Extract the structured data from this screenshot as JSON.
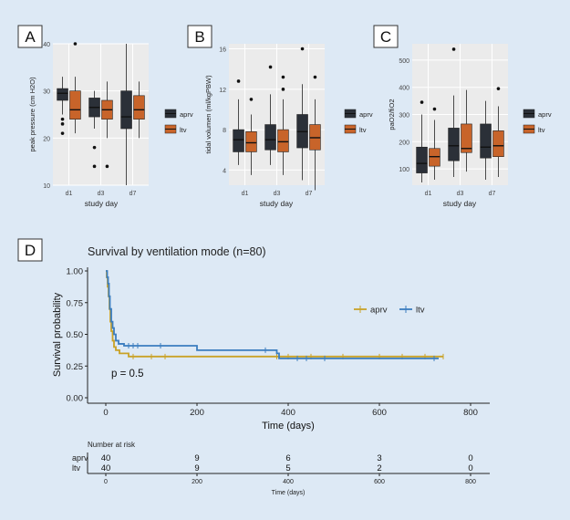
{
  "colors": {
    "background": "#dde9f5",
    "box_aprv": "#2b3038",
    "box_ltv": "#c8642a",
    "km_aprv": "#c9a227",
    "km_ltv": "#3b7dbf",
    "axis": "#333333"
  },
  "chart_data": [
    {
      "type": "box",
      "panel_label": "A",
      "ylabel": "peak pressure (cm H2O)",
      "xlabel": "study day",
      "categories": [
        "d1",
        "d3",
        "d7"
      ],
      "ylim": [
        10,
        40
      ],
      "yticks": [
        10,
        20,
        30,
        40
      ],
      "legend": [
        "aprv",
        "ltv"
      ],
      "series": [
        {
          "name": "aprv",
          "boxes": [
            {
              "low": 25,
              "q1": 28,
              "median": 29.5,
              "q3": 30.5,
              "high": 33,
              "outliers": [
                24,
                23,
                21
              ]
            },
            {
              "low": 22,
              "q1": 24.5,
              "median": 26.5,
              "q3": 28.5,
              "high": 30,
              "outliers": [
                18,
                14
              ]
            },
            {
              "low": 10,
              "q1": 22,
              "median": 24.5,
              "q3": 30,
              "high": 40,
              "outliers": []
            }
          ]
        },
        {
          "name": "ltv",
          "boxes": [
            {
              "low": 21,
              "q1": 24,
              "median": 26,
              "q3": 30,
              "high": 33,
              "outliers": [
                40
              ]
            },
            {
              "low": 20,
              "q1": 24,
              "median": 26,
              "q3": 28,
              "high": 32,
              "outliers": [
                14
              ]
            },
            {
              "low": 20,
              "q1": 24,
              "median": 26,
              "q3": 29,
              "high": 32,
              "outliers": []
            }
          ]
        }
      ]
    },
    {
      "type": "box",
      "panel_label": "B",
      "ylabel": "tidal volumen (ml/kgPBW)",
      "xlabel": "study day",
      "categories": [
        "d1",
        "d3",
        "d7"
      ],
      "ylim": [
        2.5,
        16.5
      ],
      "yticks": [
        4,
        8,
        12,
        16
      ],
      "legend": [
        "aprv",
        "ltv"
      ],
      "series": [
        {
          "name": "aprv",
          "boxes": [
            {
              "low": 4.5,
              "q1": 5.8,
              "median": 7,
              "q3": 8,
              "high": 11,
              "outliers": [
                12.8
              ]
            },
            {
              "low": 4.5,
              "q1": 6,
              "median": 7,
              "q3": 8.5,
              "high": 11.5,
              "outliers": [
                14.2
              ]
            },
            {
              "low": 3,
              "q1": 6.2,
              "median": 7.8,
              "q3": 9.5,
              "high": 12.5,
              "outliers": [
                16
              ]
            }
          ]
        },
        {
          "name": "ltv",
          "boxes": [
            {
              "low": 3.5,
              "q1": 5.8,
              "median": 6.7,
              "q3": 7.8,
              "high": 9.5,
              "outliers": [
                11
              ]
            },
            {
              "low": 3.5,
              "q1": 5.8,
              "median": 6.8,
              "q3": 8,
              "high": 11,
              "outliers": [
                13.2,
                12
              ]
            },
            {
              "low": 2,
              "q1": 6,
              "median": 7.2,
              "q3": 8.5,
              "high": 11,
              "outliers": [
                13.2
              ]
            }
          ]
        }
      ]
    },
    {
      "type": "box",
      "panel_label": "C",
      "ylabel": "paO2/fiO2",
      "xlabel": "study day",
      "categories": [
        "d1",
        "d3",
        "d7"
      ],
      "ylim": [
        40,
        560
      ],
      "yticks": [
        100,
        200,
        300,
        400,
        500
      ],
      "legend": [
        "aprv",
        "ltv"
      ],
      "series": [
        {
          "name": "aprv",
          "boxes": [
            {
              "low": 50,
              "q1": 85,
              "median": 120,
              "q3": 180,
              "high": 300,
              "outliers": [
                345
              ]
            },
            {
              "low": 70,
              "q1": 130,
              "median": 185,
              "q3": 250,
              "high": 370,
              "outliers": [
                540
              ]
            },
            {
              "low": 60,
              "q1": 140,
              "median": 180,
              "q3": 265,
              "high": 350,
              "outliers": []
            }
          ]
        },
        {
          "name": "ltv",
          "boxes": [
            {
              "low": 60,
              "q1": 110,
              "median": 145,
              "q3": 175,
              "high": 280,
              "outliers": [
                320
              ]
            },
            {
              "low": 90,
              "q1": 160,
              "median": 175,
              "q3": 265,
              "high": 390,
              "outliers": []
            },
            {
              "low": 70,
              "q1": 145,
              "median": 185,
              "q3": 240,
              "high": 330,
              "outliers": [
                395
              ]
            }
          ]
        }
      ]
    },
    {
      "type": "line",
      "subtype": "kaplan-meier",
      "panel_label": "D",
      "title": "Survival by ventilation mode (n=80)",
      "xlabel": "Time (days)",
      "ylabel": "Survival probability",
      "xlim": [
        0,
        800
      ],
      "ylim": [
        0,
        1
      ],
      "xticks": [
        0,
        200,
        400,
        600,
        800
      ],
      "yticks": [
        "0.00",
        "0.25",
        "0.50",
        "0.75",
        "1.00"
      ],
      "annotation": "p = 0.5",
      "legend": [
        "aprv",
        "ltv"
      ],
      "series": [
        {
          "name": "aprv",
          "steps": [
            [
              0,
              1.0
            ],
            [
              2,
              0.95
            ],
            [
              4,
              0.875
            ],
            [
              6,
              0.8
            ],
            [
              8,
              0.7
            ],
            [
              10,
              0.6
            ],
            [
              12,
              0.525
            ],
            [
              15,
              0.45
            ],
            [
              18,
              0.4
            ],
            [
              22,
              0.375
            ],
            [
              30,
              0.35
            ],
            [
              50,
              0.325
            ],
            [
              740,
              0.325
            ]
          ],
          "censored": [
            60,
            100,
            130,
            375,
            400,
            450,
            520,
            600,
            650,
            700,
            740
          ]
        },
        {
          "name": "ltv",
          "steps": [
            [
              0,
              1.0
            ],
            [
              3,
              0.95
            ],
            [
              5,
              0.9
            ],
            [
              7,
              0.8
            ],
            [
              9,
              0.7
            ],
            [
              12,
              0.6
            ],
            [
              15,
              0.55
            ],
            [
              18,
              0.5
            ],
            [
              22,
              0.45
            ],
            [
              28,
              0.425
            ],
            [
              40,
              0.41
            ],
            [
              200,
              0.375
            ],
            [
              375,
              0.35
            ],
            [
              380,
              0.31
            ],
            [
              730,
              0.31
            ]
          ],
          "censored": [
            50,
            60,
            70,
            120,
            350,
            420,
            440,
            480,
            720
          ]
        }
      ],
      "risk_table": {
        "title": "Number at risk",
        "xlabel": "Time (days)",
        "times": [
          0,
          200,
          400,
          600,
          800
        ],
        "rows": [
          {
            "name": "aprv",
            "values": [
              "40",
              "9",
              "6",
              "3",
              "0"
            ]
          },
          {
            "name": "ltv",
            "values": [
              "40",
              "9",
              "5",
              "2",
              "0"
            ]
          }
        ]
      }
    }
  ]
}
